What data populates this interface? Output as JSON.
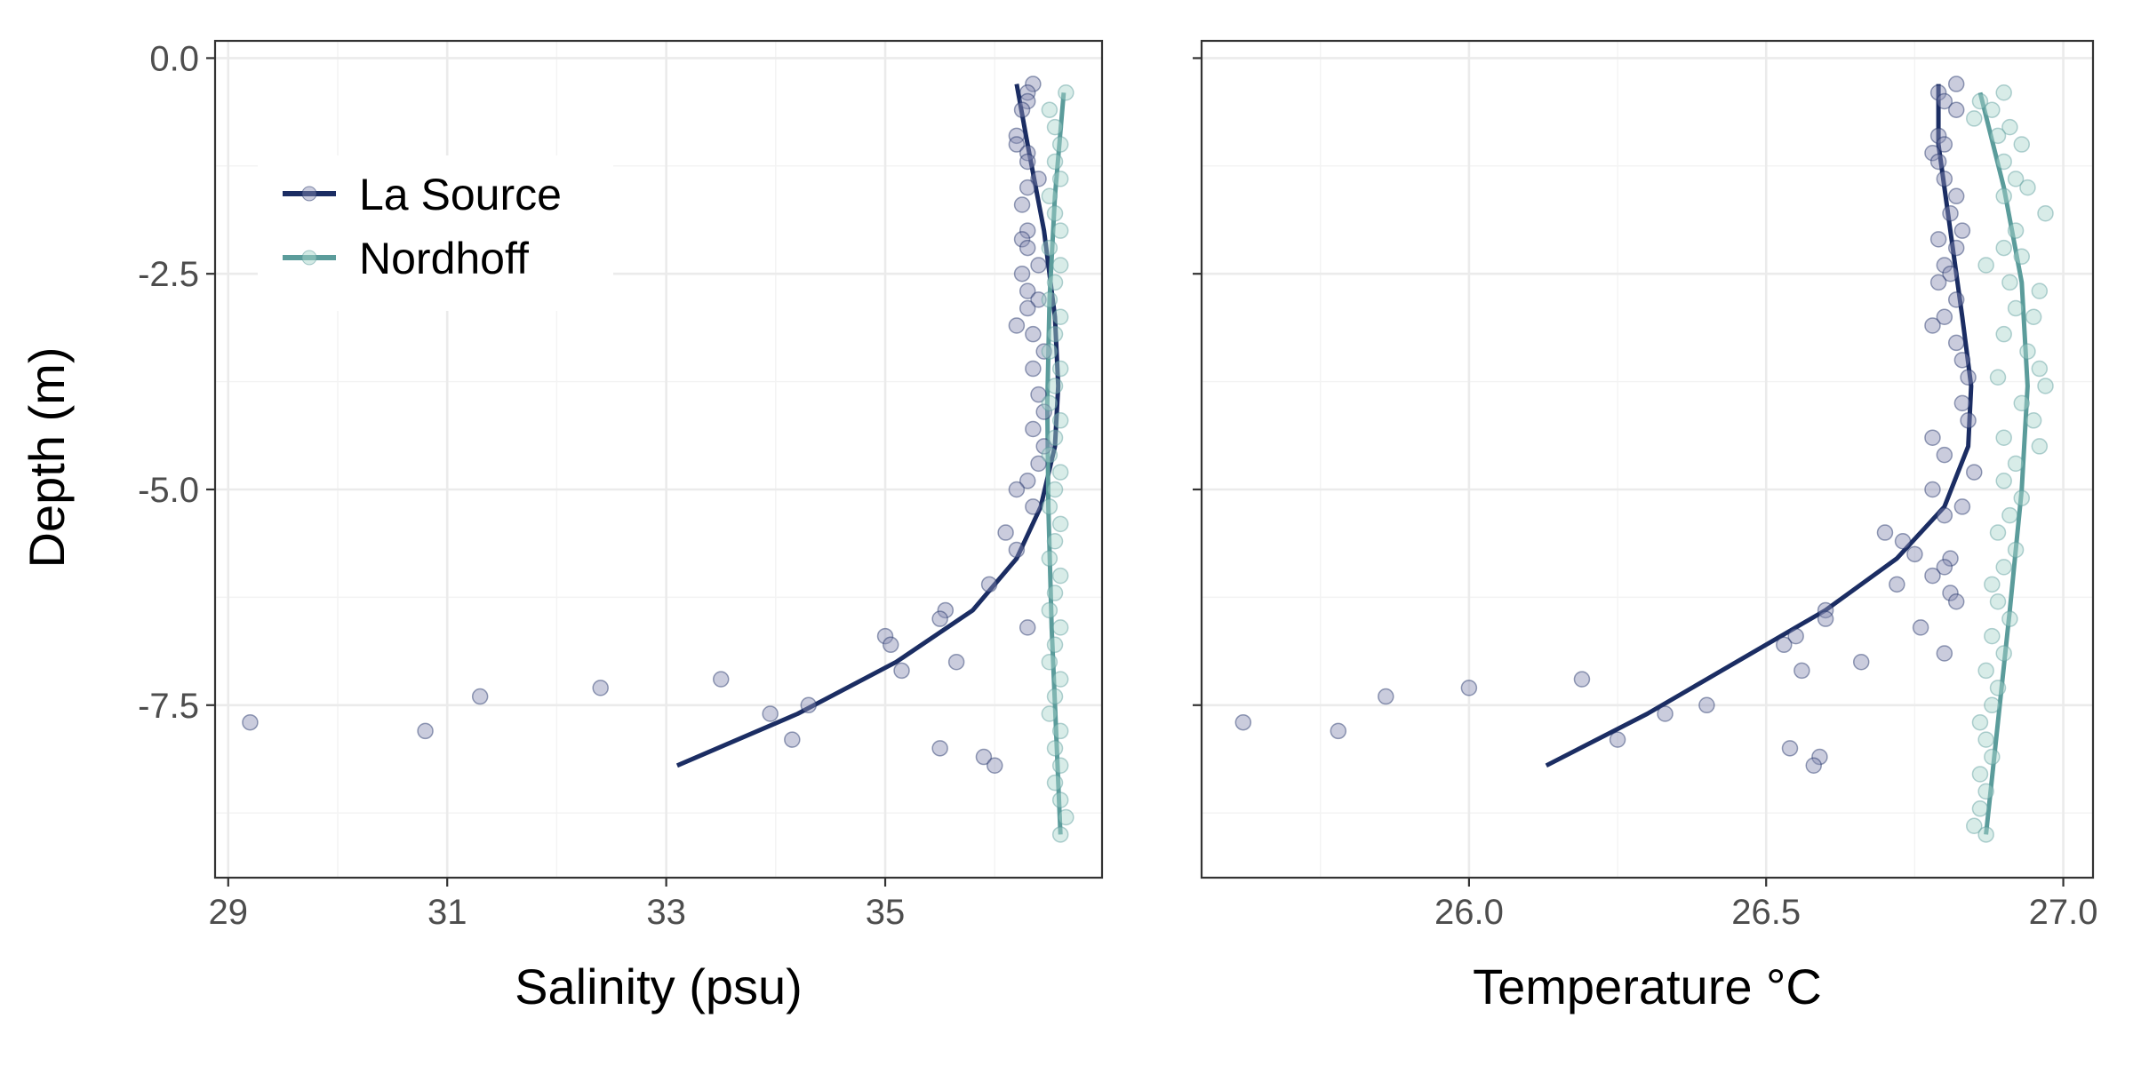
{
  "shared": {
    "ylabel": "Depth (m)",
    "ylim": [
      -9.5,
      0.2
    ],
    "yticks": [
      0.0,
      -2.5,
      -5.0,
      -7.5
    ],
    "ytick_labels": [
      "0.0",
      "-2.5",
      "-5.0",
      "-7.5"
    ],
    "legend": {
      "placement": "top-left inside first panel",
      "entries": [
        {
          "label": "La Source",
          "color": "#1b2d63"
        },
        {
          "label": "Nordhoff",
          "color": "#5b9c9b"
        }
      ]
    },
    "point_colors": {
      "La Source": "#8a8fb3",
      "Nordhoff": "#a8d5cb"
    }
  },
  "chart_data": [
    {
      "type": "scatter",
      "xlabel": "Salinity (psu)",
      "xlim": [
        28.88,
        36.98
      ],
      "xticks": [
        29,
        31,
        33,
        35
      ],
      "xtick_labels": [
        "29",
        "31",
        "33",
        "35"
      ],
      "series": [
        {
          "name": "La Source",
          "points": [
            [
              36.35,
              -0.3
            ],
            [
              36.3,
              -0.4
            ],
            [
              36.3,
              -0.5
            ],
            [
              36.25,
              -0.6
            ],
            [
              36.2,
              -0.9
            ],
            [
              36.2,
              -1.0
            ],
            [
              36.3,
              -1.1
            ],
            [
              36.3,
              -1.2
            ],
            [
              36.4,
              -1.4
            ],
            [
              36.3,
              -1.5
            ],
            [
              36.25,
              -1.7
            ],
            [
              36.3,
              -2.0
            ],
            [
              36.25,
              -2.1
            ],
            [
              36.3,
              -2.2
            ],
            [
              36.4,
              -2.4
            ],
            [
              36.25,
              -2.5
            ],
            [
              36.3,
              -2.7
            ],
            [
              36.4,
              -2.8
            ],
            [
              36.3,
              -2.9
            ],
            [
              36.2,
              -3.1
            ],
            [
              36.35,
              -3.2
            ],
            [
              36.45,
              -3.4
            ],
            [
              36.35,
              -3.6
            ],
            [
              36.4,
              -3.9
            ],
            [
              36.45,
              -4.1
            ],
            [
              36.35,
              -4.3
            ],
            [
              36.45,
              -4.5
            ],
            [
              36.4,
              -4.7
            ],
            [
              36.3,
              -4.9
            ],
            [
              36.2,
              -5.0
            ],
            [
              36.35,
              -5.2
            ],
            [
              36.1,
              -5.5
            ],
            [
              36.2,
              -5.7
            ],
            [
              35.95,
              -6.1
            ],
            [
              35.55,
              -6.4
            ],
            [
              35.5,
              -6.5
            ],
            [
              36.3,
              -6.6
            ],
            [
              35.0,
              -6.7
            ],
            [
              35.05,
              -6.8
            ],
            [
              35.15,
              -7.1
            ],
            [
              35.65,
              -7.0
            ],
            [
              33.5,
              -7.2
            ],
            [
              32.4,
              -7.3
            ],
            [
              31.3,
              -7.4
            ],
            [
              34.3,
              -7.5
            ],
            [
              33.95,
              -7.6
            ],
            [
              29.2,
              -7.7
            ],
            [
              30.8,
              -7.8
            ],
            [
              34.15,
              -7.9
            ],
            [
              35.5,
              -8.0
            ],
            [
              35.9,
              -8.1
            ],
            [
              36.0,
              -8.2
            ]
          ]
        },
        {
          "name": "Nordhoff",
          "points": [
            [
              36.65,
              -0.4
            ],
            [
              36.5,
              -0.6
            ],
            [
              36.55,
              -0.8
            ],
            [
              36.6,
              -1.0
            ],
            [
              36.55,
              -1.2
            ],
            [
              36.6,
              -1.4
            ],
            [
              36.5,
              -1.6
            ],
            [
              36.55,
              -1.8
            ],
            [
              36.6,
              -2.0
            ],
            [
              36.5,
              -2.2
            ],
            [
              36.6,
              -2.4
            ],
            [
              36.55,
              -2.6
            ],
            [
              36.5,
              -2.8
            ],
            [
              36.6,
              -3.0
            ],
            [
              36.55,
              -3.2
            ],
            [
              36.5,
              -3.4
            ],
            [
              36.6,
              -3.6
            ],
            [
              36.55,
              -3.8
            ],
            [
              36.5,
              -4.0
            ],
            [
              36.6,
              -4.2
            ],
            [
              36.55,
              -4.4
            ],
            [
              36.5,
              -4.6
            ],
            [
              36.6,
              -4.8
            ],
            [
              36.55,
              -5.0
            ],
            [
              36.5,
              -5.2
            ],
            [
              36.6,
              -5.4
            ],
            [
              36.55,
              -5.6
            ],
            [
              36.5,
              -5.8
            ],
            [
              36.6,
              -6.0
            ],
            [
              36.55,
              -6.2
            ],
            [
              36.5,
              -6.4
            ],
            [
              36.6,
              -6.6
            ],
            [
              36.55,
              -6.8
            ],
            [
              36.5,
              -7.0
            ],
            [
              36.6,
              -7.2
            ],
            [
              36.55,
              -7.4
            ],
            [
              36.5,
              -7.6
            ],
            [
              36.6,
              -7.8
            ],
            [
              36.55,
              -8.0
            ],
            [
              36.6,
              -8.2
            ],
            [
              36.55,
              -8.4
            ],
            [
              36.6,
              -8.6
            ],
            [
              36.65,
              -8.8
            ],
            [
              36.6,
              -9.0
            ]
          ]
        }
      ],
      "fits": [
        {
          "name": "La Source",
          "x": [
            36.2,
            36.3,
            36.45,
            36.55,
            36.58,
            36.55,
            36.42,
            36.2,
            35.8,
            35.1,
            34.2,
            33.1
          ],
          "y": [
            -0.3,
            -1.0,
            -2.0,
            -3.0,
            -3.8,
            -4.5,
            -5.2,
            -5.8,
            -6.4,
            -7.0,
            -7.6,
            -8.2
          ]
        },
        {
          "name": "Nordhoff",
          "x": [
            36.63,
            36.55,
            36.5,
            36.48,
            36.49,
            36.52,
            36.56,
            36.6
          ],
          "y": [
            -0.4,
            -1.6,
            -2.8,
            -4.0,
            -5.2,
            -6.6,
            -7.8,
            -9.0
          ]
        }
      ]
    },
    {
      "type": "scatter",
      "xlabel": "Temperature °C",
      "xlim": [
        25.55,
        27.05
      ],
      "xticks": [
        26.0,
        26.5,
        27.0
      ],
      "xtick_labels": [
        "26.0",
        "26.5",
        "27.0"
      ],
      "series": [
        {
          "name": "La Source",
          "points": [
            [
              26.82,
              -0.3
            ],
            [
              26.79,
              -0.4
            ],
            [
              26.8,
              -0.5
            ],
            [
              26.82,
              -0.6
            ],
            [
              26.79,
              -0.9
            ],
            [
              26.8,
              -1.0
            ],
            [
              26.78,
              -1.1
            ],
            [
              26.79,
              -1.2
            ],
            [
              26.8,
              -1.4
            ],
            [
              26.82,
              -1.6
            ],
            [
              26.81,
              -1.8
            ],
            [
              26.83,
              -2.0
            ],
            [
              26.79,
              -2.1
            ],
            [
              26.82,
              -2.2
            ],
            [
              26.8,
              -2.4
            ],
            [
              26.81,
              -2.5
            ],
            [
              26.79,
              -2.6
            ],
            [
              26.82,
              -2.8
            ],
            [
              26.8,
              -3.0
            ],
            [
              26.78,
              -3.1
            ],
            [
              26.82,
              -3.3
            ],
            [
              26.83,
              -3.5
            ],
            [
              26.84,
              -3.7
            ],
            [
              26.83,
              -4.0
            ],
            [
              26.84,
              -4.2
            ],
            [
              26.78,
              -4.4
            ],
            [
              26.8,
              -4.6
            ],
            [
              26.85,
              -4.8
            ],
            [
              26.78,
              -5.0
            ],
            [
              26.83,
              -5.2
            ],
            [
              26.8,
              -5.3
            ],
            [
              26.7,
              -5.5
            ],
            [
              26.73,
              -5.6
            ],
            [
              26.75,
              -5.75
            ],
            [
              26.81,
              -5.8
            ],
            [
              26.8,
              -5.9
            ],
            [
              26.78,
              -6.0
            ],
            [
              26.72,
              -6.1
            ],
            [
              26.81,
              -6.2
            ],
            [
              26.82,
              -6.3
            ],
            [
              26.6,
              -6.4
            ],
            [
              26.6,
              -6.5
            ],
            [
              26.76,
              -6.6
            ],
            [
              26.55,
              -6.7
            ],
            [
              26.53,
              -6.8
            ],
            [
              26.8,
              -6.9
            ],
            [
              26.66,
              -7.0
            ],
            [
              26.56,
              -7.1
            ],
            [
              26.19,
              -7.2
            ],
            [
              26.0,
              -7.3
            ],
            [
              25.86,
              -7.4
            ],
            [
              26.4,
              -7.5
            ],
            [
              26.33,
              -7.6
            ],
            [
              25.62,
              -7.7
            ],
            [
              25.78,
              -7.8
            ],
            [
              26.25,
              -7.9
            ],
            [
              26.54,
              -8.0
            ],
            [
              26.59,
              -8.1
            ],
            [
              26.58,
              -8.2
            ]
          ]
        },
        {
          "name": "Nordhoff",
          "points": [
            [
              26.9,
              -0.4
            ],
            [
              26.86,
              -0.5
            ],
            [
              26.88,
              -0.6
            ],
            [
              26.85,
              -0.7
            ],
            [
              26.91,
              -0.8
            ],
            [
              26.89,
              -0.9
            ],
            [
              26.93,
              -1.0
            ],
            [
              26.9,
              -1.2
            ],
            [
              26.92,
              -1.4
            ],
            [
              26.94,
              -1.5
            ],
            [
              26.9,
              -1.6
            ],
            [
              26.97,
              -1.8
            ],
            [
              26.92,
              -2.0
            ],
            [
              26.9,
              -2.2
            ],
            [
              26.93,
              -2.3
            ],
            [
              26.87,
              -2.4
            ],
            [
              26.91,
              -2.6
            ],
            [
              26.96,
              -2.7
            ],
            [
              26.92,
              -2.9
            ],
            [
              26.95,
              -3.0
            ],
            [
              26.9,
              -3.2
            ],
            [
              26.94,
              -3.4
            ],
            [
              26.96,
              -3.6
            ],
            [
              26.89,
              -3.7
            ],
            [
              26.97,
              -3.8
            ],
            [
              26.93,
              -4.0
            ],
            [
              26.95,
              -4.2
            ],
            [
              26.9,
              -4.4
            ],
            [
              26.96,
              -4.5
            ],
            [
              26.92,
              -4.7
            ],
            [
              26.9,
              -4.9
            ],
            [
              26.93,
              -5.1
            ],
            [
              26.91,
              -5.3
            ],
            [
              26.89,
              -5.5
            ],
            [
              26.92,
              -5.7
            ],
            [
              26.9,
              -5.9
            ],
            [
              26.88,
              -6.1
            ],
            [
              26.89,
              -6.3
            ],
            [
              26.91,
              -6.5
            ],
            [
              26.88,
              -6.7
            ],
            [
              26.9,
              -6.9
            ],
            [
              26.87,
              -7.1
            ],
            [
              26.89,
              -7.3
            ],
            [
              26.88,
              -7.5
            ],
            [
              26.86,
              -7.7
            ],
            [
              26.87,
              -7.9
            ],
            [
              26.88,
              -8.1
            ],
            [
              26.86,
              -8.3
            ],
            [
              26.87,
              -8.5
            ],
            [
              26.86,
              -8.7
            ],
            [
              26.85,
              -8.9
            ],
            [
              26.87,
              -9.0
            ]
          ]
        }
      ],
      "fits": [
        {
          "name": "La Source",
          "x": [
            26.79,
            26.79,
            26.81,
            26.83,
            26.845,
            26.84,
            26.8,
            26.72,
            26.6,
            26.45,
            26.3,
            26.13
          ],
          "y": [
            -0.3,
            -1.0,
            -2.0,
            -3.0,
            -3.8,
            -4.5,
            -5.2,
            -5.8,
            -6.4,
            -7.0,
            -7.6,
            -8.2
          ]
        },
        {
          "name": "Nordhoff",
          "x": [
            26.86,
            26.9,
            26.93,
            26.94,
            26.93,
            26.91,
            26.89,
            26.87
          ],
          "y": [
            -0.4,
            -1.5,
            -2.6,
            -3.8,
            -5.0,
            -6.4,
            -7.7,
            -9.0
          ]
        }
      ]
    }
  ]
}
